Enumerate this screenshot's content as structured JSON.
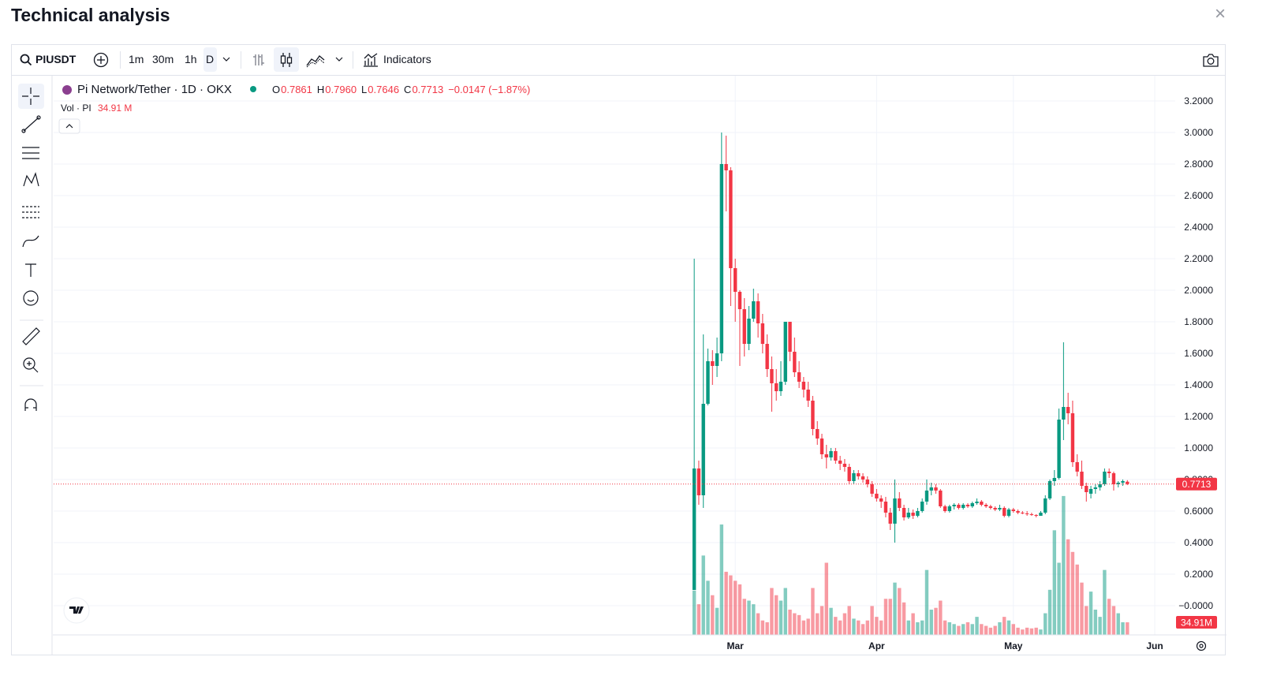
{
  "header": {
    "title": "Technical analysis"
  },
  "toolbar": {
    "symbol": "PIUSDT",
    "intervals": [
      "1m",
      "30m",
      "1h",
      "D"
    ],
    "indicators": "Indicators"
  },
  "chart_data": {
    "type": "candlestick",
    "title": "Pi Network/Tether · 1D · OKX",
    "legend": [
      {
        "key": "O",
        "text": "0.7861"
      },
      {
        "key": "H",
        "text": "0.7960"
      },
      {
        "key": "L",
        "text": "0.7646"
      },
      {
        "key": "C",
        "text": "0.7713"
      }
    ],
    "change": "−0.0147 (−1.87%)",
    "volume_title": "Vol · PI",
    "volume_text": "34.91 M",
    "price_tag": "0.7713",
    "volume_tag": "34.91M",
    "x": [
      51,
      52,
      53,
      54,
      55,
      56,
      57,
      58,
      59,
      60,
      61,
      62,
      63,
      64,
      65,
      66,
      67,
      68,
      69,
      70,
      71,
      72,
      73,
      74,
      75,
      76,
      77,
      78,
      79,
      80,
      81,
      82,
      83,
      84,
      85,
      86,
      87,
      88,
      89,
      90,
      91,
      92,
      93,
      94,
      95,
      96,
      97,
      98,
      99,
      100,
      101,
      102,
      103,
      104,
      105,
      106,
      107,
      108,
      109,
      110,
      111,
      112,
      113,
      114,
      115,
      116,
      117,
      118,
      119,
      120,
      121,
      122,
      123,
      124,
      125,
      126,
      127,
      128,
      129,
      130,
      131,
      132,
      133,
      134,
      135,
      136,
      137,
      138,
      139,
      140,
      141,
      142,
      143,
      144,
      145,
      146
    ],
    "open": [
      0.1,
      0.87,
      0.7,
      1.28,
      1.55,
      1.52,
      1.6,
      2.8,
      2.76,
      2.14,
      1.99,
      1.88,
      1.66,
      1.82,
      1.93,
      1.79,
      1.66,
      1.5,
      1.41,
      1.36,
      1.42,
      1.8,
      1.61,
      1.48,
      1.42,
      1.37,
      1.3,
      1.12,
      1.06,
      0.96,
      0.94,
      0.98,
      0.92,
      0.9,
      0.88,
      0.79,
      0.84,
      0.82,
      0.8,
      0.77,
      0.71,
      0.68,
      0.66,
      0.59,
      0.52,
      0.68,
      0.62,
      0.56,
      0.59,
      0.57,
      0.6,
      0.66,
      0.73,
      0.75,
      0.73,
      0.63,
      0.6,
      0.63,
      0.64,
      0.62,
      0.64,
      0.63,
      0.65,
      0.66,
      0.64,
      0.63,
      0.62,
      0.61,
      0.62,
      0.57,
      0.61,
      0.6,
      0.59,
      0.585,
      0.58,
      0.575,
      0.57,
      0.59,
      0.68,
      0.79,
      0.81,
      1.18,
      1.26,
      1.22,
      0.91,
      0.85,
      0.76,
      0.71,
      0.74,
      0.75,
      0.77,
      0.85,
      0.84,
      0.77,
      0.78,
      0.7861
    ],
    "high": [
      2.2,
      0.92,
      1.72,
      1.63,
      1.62,
      1.7,
      3.0,
      2.98,
      2.78,
      2.2,
      2.0,
      1.95,
      1.9,
      2.01,
      1.98,
      1.85,
      1.72,
      1.58,
      1.5,
      1.55,
      1.8,
      1.8,
      1.7,
      1.55,
      1.45,
      1.42,
      1.33,
      1.17,
      1.09,
      1.02,
      1.0,
      1.0,
      0.95,
      0.93,
      0.9,
      0.86,
      0.86,
      0.84,
      0.82,
      0.79,
      0.74,
      0.7,
      0.69,
      0.62,
      0.8,
      0.72,
      0.64,
      0.62,
      0.61,
      0.62,
      0.68,
      0.8,
      0.78,
      0.77,
      0.74,
      0.64,
      0.64,
      0.65,
      0.65,
      0.65,
      0.65,
      0.66,
      0.68,
      0.67,
      0.65,
      0.64,
      0.63,
      0.64,
      0.63,
      0.62,
      0.62,
      0.61,
      0.6,
      0.6,
      0.59,
      0.58,
      0.6,
      0.7,
      0.8,
      0.86,
      1.25,
      1.67,
      1.35,
      1.3,
      0.96,
      0.92,
      0.78,
      0.76,
      0.77,
      0.79,
      0.87,
      0.87,
      0.85,
      0.79,
      0.8,
      0.796
    ],
    "low": [
      0.1,
      0.64,
      0.62,
      1.27,
      1.4,
      1.45,
      1.55,
      2.5,
      1.9,
      1.8,
      1.52,
      1.58,
      1.62,
      1.8,
      1.7,
      1.6,
      1.45,
      1.23,
      1.3,
      1.33,
      1.4,
      1.55,
      1.45,
      1.38,
      1.32,
      1.26,
      1.08,
      1.02,
      0.93,
      0.87,
      0.92,
      0.9,
      0.86,
      0.85,
      0.77,
      0.77,
      0.8,
      0.78,
      0.75,
      0.69,
      0.66,
      0.62,
      0.56,
      0.48,
      0.4,
      0.6,
      0.54,
      0.55,
      0.55,
      0.56,
      0.59,
      0.64,
      0.7,
      0.71,
      0.62,
      0.59,
      0.59,
      0.61,
      0.61,
      0.61,
      0.62,
      0.62,
      0.64,
      0.63,
      0.62,
      0.61,
      0.6,
      0.6,
      0.56,
      0.56,
      0.59,
      0.58,
      0.58,
      0.57,
      0.57,
      0.56,
      0.57,
      0.58,
      0.67,
      0.76,
      0.8,
      1.05,
      1.15,
      0.88,
      0.82,
      0.74,
      0.66,
      0.68,
      0.71,
      0.73,
      0.76,
      0.81,
      0.73,
      0.75,
      0.76,
      0.7646
    ],
    "close": [
      0.87,
      0.7,
      1.28,
      1.55,
      1.52,
      1.6,
      2.8,
      2.76,
      2.14,
      1.99,
      1.88,
      1.66,
      1.82,
      1.93,
      1.79,
      1.66,
      1.5,
      1.41,
      1.36,
      1.42,
      1.8,
      1.61,
      1.48,
      1.42,
      1.37,
      1.3,
      1.12,
      1.06,
      0.96,
      0.94,
      0.98,
      0.92,
      0.9,
      0.88,
      0.79,
      0.84,
      0.82,
      0.8,
      0.77,
      0.71,
      0.68,
      0.66,
      0.59,
      0.52,
      0.68,
      0.62,
      0.56,
      0.59,
      0.57,
      0.6,
      0.66,
      0.73,
      0.75,
      0.73,
      0.63,
      0.6,
      0.63,
      0.64,
      0.62,
      0.64,
      0.63,
      0.65,
      0.66,
      0.64,
      0.63,
      0.62,
      0.61,
      0.62,
      0.57,
      0.61,
      0.6,
      0.59,
      0.585,
      0.58,
      0.575,
      0.57,
      0.59,
      0.68,
      0.79,
      0.81,
      1.18,
      1.26,
      1.22,
      0.91,
      0.85,
      0.76,
      0.72,
      0.74,
      0.75,
      0.77,
      0.85,
      0.84,
      0.77,
      0.78,
      0.79,
      0.7713
    ],
    "volume": [
      123,
      85,
      220,
      150,
      110,
      75,
      306,
      175,
      165,
      150,
      140,
      100,
      95,
      85,
      60,
      40,
      35,
      130,
      110,
      95,
      130,
      70,
      60,
      55,
      40,
      45,
      130,
      60,
      80,
      200,
      75,
      50,
      40,
      60,
      80,
      45,
      40,
      30,
      40,
      80,
      50,
      40,
      100,
      100,
      145,
      130,
      90,
      40,
      60,
      35,
      40,
      180,
      70,
      75,
      95,
      40,
      35,
      30,
      25,
      30,
      35,
      30,
      50,
      30,
      25,
      20,
      25,
      35,
      50,
      40,
      30,
      20,
      15,
      20,
      18,
      20,
      15,
      60,
      125,
      290,
      200,
      385,
      265,
      230,
      195,
      145,
      80,
      120,
      70,
      50,
      180,
      100,
      80,
      60,
      35,
      34.91
    ],
    "up_color": "#089981",
    "down_color": "#f23645",
    "xlim": [
      -89.5,
      156.5
    ],
    "xticks": [
      {
        "value": 60,
        "label": "Mar"
      },
      {
        "value": 91,
        "label": "Apr"
      },
      {
        "value": 121,
        "label": "May"
      },
      {
        "value": 152,
        "label": "Jun"
      }
    ],
    "ylim": [
      -0.185,
      3.36
    ],
    "yticks": [
      {
        "value": 0,
        "label": "−0.0000"
      },
      {
        "value": 0.2,
        "label": "0.2000"
      },
      {
        "value": 0.4,
        "label": "0.4000"
      },
      {
        "value": 0.6,
        "label": "0.6000"
      },
      {
        "value": 0.8,
        "label": "0.8000"
      },
      {
        "value": 1.0,
        "label": "1.0000"
      },
      {
        "value": 1.2,
        "label": "1.2000"
      },
      {
        "value": 1.4,
        "label": "1.4000"
      },
      {
        "value": 1.6,
        "label": "1.6000"
      },
      {
        "value": 1.8,
        "label": "1.8000"
      },
      {
        "value": 2.0,
        "label": "2.0000"
      },
      {
        "value": 2.2,
        "label": "2.2000"
      },
      {
        "value": 2.4,
        "label": "2.4000"
      },
      {
        "value": 2.6,
        "label": "2.6000"
      },
      {
        "value": 2.8,
        "label": "2.8000"
      },
      {
        "value": 3.0,
        "label": "3.0000"
      },
      {
        "value": 3.2,
        "label": "3.2000"
      }
    ],
    "volume_lim": [
      0,
      1550
    ],
    "grid": true
  }
}
